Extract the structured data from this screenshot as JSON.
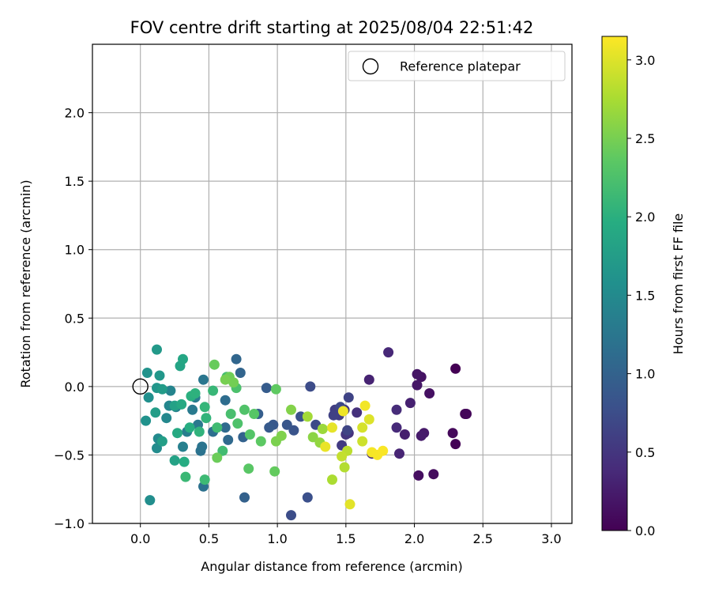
{
  "chart_data": {
    "type": "scatter",
    "title": "FOV centre drift starting at 2025/08/04 22:51:42",
    "xlabel": "Angular distance from reference (arcmin)",
    "ylabel": "Rotation from reference (arcmin)",
    "xlim": [
      -0.35,
      3.15
    ],
    "ylim": [
      -1.0,
      2.5
    ],
    "xticks": [
      0.0,
      0.5,
      1.0,
      1.5,
      2.0,
      2.5,
      3.0
    ],
    "xtick_labels": [
      "0.0",
      "0.5",
      "1.0",
      "1.5",
      "2.0",
      "2.5",
      "3.0"
    ],
    "yticks": [
      -1.0,
      -0.5,
      0.0,
      0.5,
      1.0,
      1.5,
      2.0
    ],
    "ytick_labels": [
      "−1.0",
      "−0.5",
      "0.0",
      "0.5",
      "1.0",
      "1.5",
      "2.0"
    ],
    "grid": true,
    "colormap": "viridis",
    "colorbar": {
      "label": "Hours from first FF file",
      "range": [
        0.0,
        3.15
      ],
      "ticks": [
        0.0,
        0.5,
        1.0,
        1.5,
        2.0,
        2.5,
        3.0
      ],
      "tick_labels": [
        "0.0",
        "0.5",
        "1.0",
        "1.5",
        "2.0",
        "2.5",
        "3.0"
      ]
    },
    "legend": {
      "position": "top-right",
      "entries": [
        {
          "label": "Reference platepar",
          "marker": "open-circle"
        }
      ]
    },
    "reference_point": {
      "x": 0.0,
      "y": 0.0
    },
    "points": [
      [
        2.3,
        0.13,
        0.0
      ],
      [
        2.3,
        -0.42,
        0.02
      ],
      [
        2.37,
        -0.2,
        0.04
      ],
      [
        2.38,
        -0.2,
        0.05
      ],
      [
        2.28,
        -0.34,
        0.07
      ],
      [
        2.14,
        -0.64,
        0.1
      ],
      [
        2.03,
        -0.65,
        0.12
      ],
      [
        2.11,
        -0.05,
        0.14
      ],
      [
        2.05,
        0.07,
        0.16
      ],
      [
        2.02,
        0.09,
        0.18
      ],
      [
        2.02,
        0.01,
        0.2
      ],
      [
        2.07,
        -0.34,
        0.22
      ],
      [
        2.05,
        -0.36,
        0.24
      ],
      [
        1.93,
        -0.35,
        0.27
      ],
      [
        1.97,
        -0.12,
        0.29
      ],
      [
        1.67,
        0.05,
        0.31
      ],
      [
        1.89,
        -0.49,
        0.33
      ],
      [
        1.81,
        0.25,
        0.36
      ],
      [
        1.87,
        -0.3,
        0.38
      ],
      [
        1.87,
        -0.17,
        0.4
      ],
      [
        1.69,
        -0.49,
        0.42
      ],
      [
        1.58,
        -0.19,
        0.45
      ],
      [
        1.52,
        -0.34,
        0.47
      ],
      [
        1.5,
        -0.35,
        0.5
      ],
      [
        1.49,
        -0.17,
        0.52
      ],
      [
        1.47,
        -0.43,
        0.55
      ],
      [
        1.45,
        -0.21,
        0.57
      ],
      [
        1.42,
        -0.17,
        0.59
      ],
      [
        1.41,
        -0.21,
        0.62
      ],
      [
        1.52,
        -0.08,
        0.64
      ],
      [
        1.51,
        -0.32,
        0.66
      ],
      [
        1.46,
        -0.15,
        0.69
      ],
      [
        1.28,
        -0.28,
        0.71
      ],
      [
        1.24,
        0.0,
        0.73
      ],
      [
        1.1,
        -0.94,
        0.75
      ],
      [
        1.22,
        -0.81,
        0.78
      ],
      [
        1.17,
        -0.22,
        0.8
      ],
      [
        1.12,
        -0.32,
        0.82
      ],
      [
        1.07,
        -0.28,
        0.85
      ],
      [
        0.97,
        -0.28,
        0.87
      ],
      [
        0.94,
        -0.3,
        0.9
      ],
      [
        0.92,
        -0.01,
        0.92
      ],
      [
        0.86,
        -0.2,
        0.95
      ],
      [
        0.76,
        -0.81,
        0.98
      ],
      [
        0.75,
        -0.37,
        1.0
      ],
      [
        0.73,
        0.1,
        1.03
      ],
      [
        0.7,
        0.2,
        1.05
      ],
      [
        0.64,
        -0.39,
        1.08
      ],
      [
        0.62,
        -0.3,
        1.1
      ],
      [
        0.62,
        -0.1,
        1.13
      ],
      [
        0.53,
        -0.33,
        1.15
      ],
      [
        0.46,
        -0.73,
        1.18
      ],
      [
        0.44,
        -0.47,
        1.2
      ],
      [
        0.45,
        -0.44,
        1.22
      ],
      [
        0.46,
        0.05,
        1.25
      ],
      [
        0.42,
        -0.28,
        1.27
      ],
      [
        0.38,
        -0.17,
        1.3
      ],
      [
        0.4,
        -0.08,
        1.32
      ],
      [
        0.34,
        -0.33,
        1.35
      ],
      [
        0.31,
        -0.44,
        1.37
      ],
      [
        0.26,
        -0.15,
        1.4
      ],
      [
        0.22,
        -0.03,
        1.42
      ],
      [
        0.21,
        -0.14,
        1.45
      ],
      [
        0.19,
        -0.23,
        1.47
      ],
      [
        0.13,
        -0.38,
        1.5
      ],
      [
        0.12,
        -0.45,
        1.52
      ],
      [
        0.07,
        -0.83,
        1.55
      ],
      [
        0.06,
        -0.08,
        1.57
      ],
      [
        0.04,
        -0.25,
        1.6
      ],
      [
        0.05,
        0.1,
        1.62
      ],
      [
        0.12,
        -0.01,
        1.65
      ],
      [
        0.14,
        0.08,
        1.67
      ],
      [
        0.12,
        0.27,
        1.7
      ],
      [
        0.16,
        -0.02,
        1.73
      ],
      [
        0.11,
        -0.19,
        1.75
      ],
      [
        0.16,
        -0.4,
        1.77
      ],
      [
        0.25,
        -0.14,
        1.8
      ],
      [
        0.25,
        -0.54,
        1.82
      ],
      [
        0.29,
        0.15,
        1.85
      ],
      [
        0.31,
        0.2,
        1.87
      ],
      [
        0.3,
        -0.13,
        1.9
      ],
      [
        0.27,
        -0.34,
        1.92
      ],
      [
        0.32,
        -0.55,
        1.95
      ],
      [
        0.36,
        -0.3,
        1.97
      ],
      [
        0.37,
        -0.07,
        2.0
      ],
      [
        0.4,
        -0.05,
        2.02
      ],
      [
        0.43,
        -0.33,
        2.04
      ],
      [
        0.48,
        -0.23,
        2.06
      ],
      [
        0.47,
        -0.15,
        2.08
      ],
      [
        0.53,
        -0.03,
        2.1
      ],
      [
        0.33,
        -0.66,
        2.12
      ],
      [
        0.47,
        -0.68,
        2.14
      ],
      [
        0.56,
        -0.3,
        2.16
      ],
      [
        0.6,
        -0.47,
        2.18
      ],
      [
        0.63,
        0.07,
        2.2
      ],
      [
        0.66,
        -0.2,
        2.22
      ],
      [
        0.7,
        -0.01,
        2.24
      ],
      [
        0.71,
        -0.27,
        2.26
      ],
      [
        0.76,
        -0.17,
        2.28
      ],
      [
        0.8,
        -0.35,
        2.3
      ],
      [
        0.83,
        -0.2,
        2.32
      ],
      [
        0.79,
        -0.6,
        2.34
      ],
      [
        0.88,
        -0.4,
        2.36
      ],
      [
        0.99,
        -0.02,
        2.38
      ],
      [
        0.98,
        -0.62,
        2.4
      ],
      [
        0.54,
        0.16,
        2.42
      ],
      [
        0.56,
        -0.52,
        2.44
      ],
      [
        0.65,
        0.07,
        2.46
      ],
      [
        0.68,
        0.03,
        2.48
      ],
      [
        0.62,
        0.05,
        2.5
      ],
      [
        0.99,
        -0.4,
        2.52
      ],
      [
        1.03,
        -0.36,
        2.54
      ],
      [
        1.1,
        -0.17,
        2.56
      ],
      [
        1.26,
        -0.37,
        2.6
      ],
      [
        1.31,
        -0.41,
        2.64
      ],
      [
        1.33,
        -0.31,
        2.68
      ],
      [
        1.22,
        -0.22,
        2.72
      ],
      [
        1.4,
        -0.68,
        2.76
      ],
      [
        1.49,
        -0.59,
        2.8
      ],
      [
        1.51,
        -0.47,
        2.84
      ],
      [
        1.47,
        -0.51,
        2.88
      ],
      [
        1.62,
        -0.4,
        2.92
      ],
      [
        1.62,
        -0.3,
        2.96
      ],
      [
        1.67,
        -0.24,
        3.0
      ],
      [
        1.53,
        -0.86,
        3.02
      ],
      [
        1.4,
        -0.3,
        3.04
      ],
      [
        1.35,
        -0.44,
        3.06
      ],
      [
        1.48,
        -0.18,
        3.08
      ],
      [
        1.64,
        -0.14,
        3.1
      ],
      [
        1.69,
        -0.48,
        3.11
      ],
      [
        1.73,
        -0.5,
        3.12
      ],
      [
        1.77,
        -0.47,
        3.13
      ]
    ]
  }
}
